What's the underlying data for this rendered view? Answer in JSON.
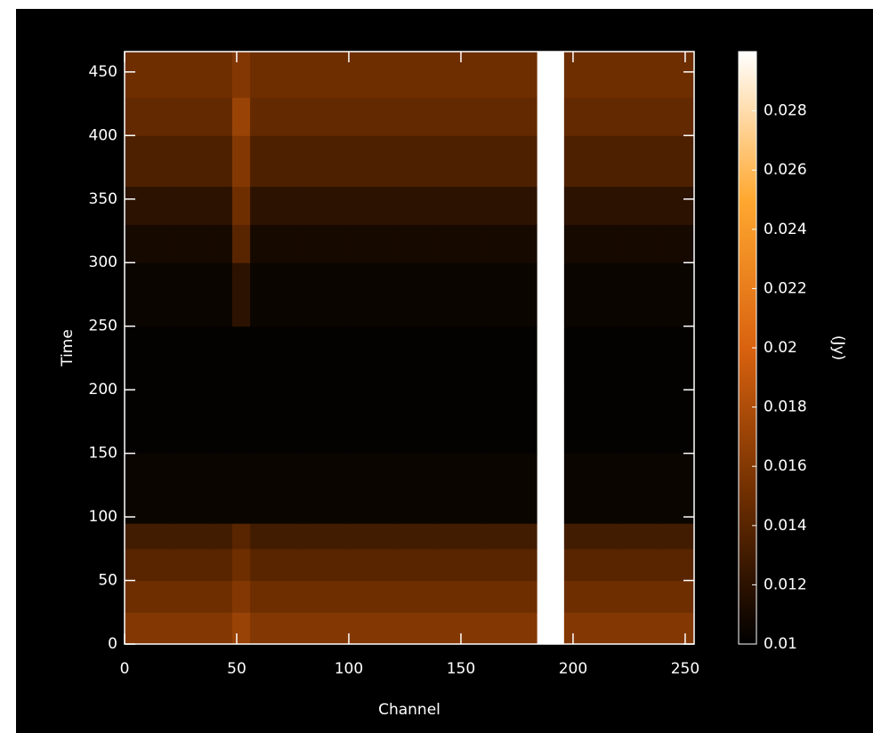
{
  "chart_data": {
    "type": "heatmap",
    "x_label": "Channel",
    "y_label": "Time",
    "colorbar_label": "(Jy)",
    "x_edges": [
      0,
      20,
      40,
      48,
      56,
      80,
      100,
      120,
      140,
      160,
      184,
      196,
      220,
      240,
      254
    ],
    "y_edges": [
      0,
      25,
      50,
      75,
      95,
      150,
      200,
      250,
      300,
      330,
      360,
      400,
      430,
      466
    ],
    "z": [
      [
        0.016,
        0.016,
        0.016,
        0.017,
        0.016,
        0.016,
        0.016,
        0.016,
        0.016,
        0.016,
        0.03,
        0.016,
        0.016,
        0.016
      ],
      [
        0.015,
        0.015,
        0.015,
        0.016,
        0.015,
        0.015,
        0.015,
        0.015,
        0.015,
        0.015,
        0.03,
        0.015,
        0.015,
        0.015
      ],
      [
        0.014,
        0.014,
        0.014,
        0.015,
        0.014,
        0.014,
        0.014,
        0.014,
        0.014,
        0.014,
        0.03,
        0.014,
        0.014,
        0.014
      ],
      [
        0.013,
        0.013,
        0.013,
        0.014,
        0.013,
        0.013,
        0.013,
        0.013,
        0.013,
        0.013,
        0.03,
        0.013,
        0.013,
        0.013
      ],
      [
        0.0105,
        0.0105,
        0.0105,
        0.0105,
        0.0105,
        0.0105,
        0.0105,
        0.0105,
        0.0105,
        0.0105,
        0.03,
        0.0105,
        0.0105,
        0.0105
      ],
      [
        0.0102,
        0.0102,
        0.0102,
        0.0102,
        0.0102,
        0.0102,
        0.0102,
        0.0102,
        0.0102,
        0.0102,
        0.03,
        0.0102,
        0.0102,
        0.0102
      ],
      [
        0.0102,
        0.0102,
        0.0102,
        0.0102,
        0.0102,
        0.0102,
        0.0102,
        0.0102,
        0.0102,
        0.0102,
        0.03,
        0.0102,
        0.0102,
        0.0102
      ],
      [
        0.0105,
        0.0105,
        0.0105,
        0.012,
        0.0105,
        0.0105,
        0.0105,
        0.0105,
        0.0105,
        0.0105,
        0.03,
        0.0105,
        0.0105,
        0.0105
      ],
      [
        0.011,
        0.011,
        0.011,
        0.014,
        0.011,
        0.011,
        0.011,
        0.011,
        0.011,
        0.011,
        0.03,
        0.011,
        0.011,
        0.011
      ],
      [
        0.012,
        0.012,
        0.012,
        0.015,
        0.012,
        0.012,
        0.012,
        0.012,
        0.012,
        0.012,
        0.03,
        0.012,
        0.012,
        0.012
      ],
      [
        0.0135,
        0.0135,
        0.0135,
        0.016,
        0.0135,
        0.0135,
        0.0135,
        0.0135,
        0.0135,
        0.0135,
        0.03,
        0.0135,
        0.0135,
        0.0135
      ],
      [
        0.0145,
        0.0145,
        0.0145,
        0.017,
        0.0145,
        0.0145,
        0.0145,
        0.0145,
        0.0145,
        0.0145,
        0.03,
        0.0145,
        0.0145,
        0.0145
      ],
      [
        0.015,
        0.015,
        0.015,
        0.016,
        0.015,
        0.015,
        0.015,
        0.015,
        0.015,
        0.015,
        0.03,
        0.015,
        0.015,
        0.015
      ]
    ],
    "xlim": [
      0,
      254
    ],
    "ylim": [
      0,
      466
    ],
    "xticks": [
      0,
      50,
      100,
      150,
      200,
      250
    ],
    "yticks": [
      0,
      50,
      100,
      150,
      200,
      250,
      300,
      350,
      400,
      450
    ],
    "clim": [
      0.01,
      0.03
    ],
    "cticks": [
      0.01,
      0.012,
      0.014,
      0.016,
      0.018,
      0.02,
      0.022,
      0.024,
      0.026,
      0.028
    ],
    "colorscale": [
      "#000000",
      "#6e2e00",
      "#d9620f",
      "#ffa830",
      "#ffffff"
    ]
  }
}
